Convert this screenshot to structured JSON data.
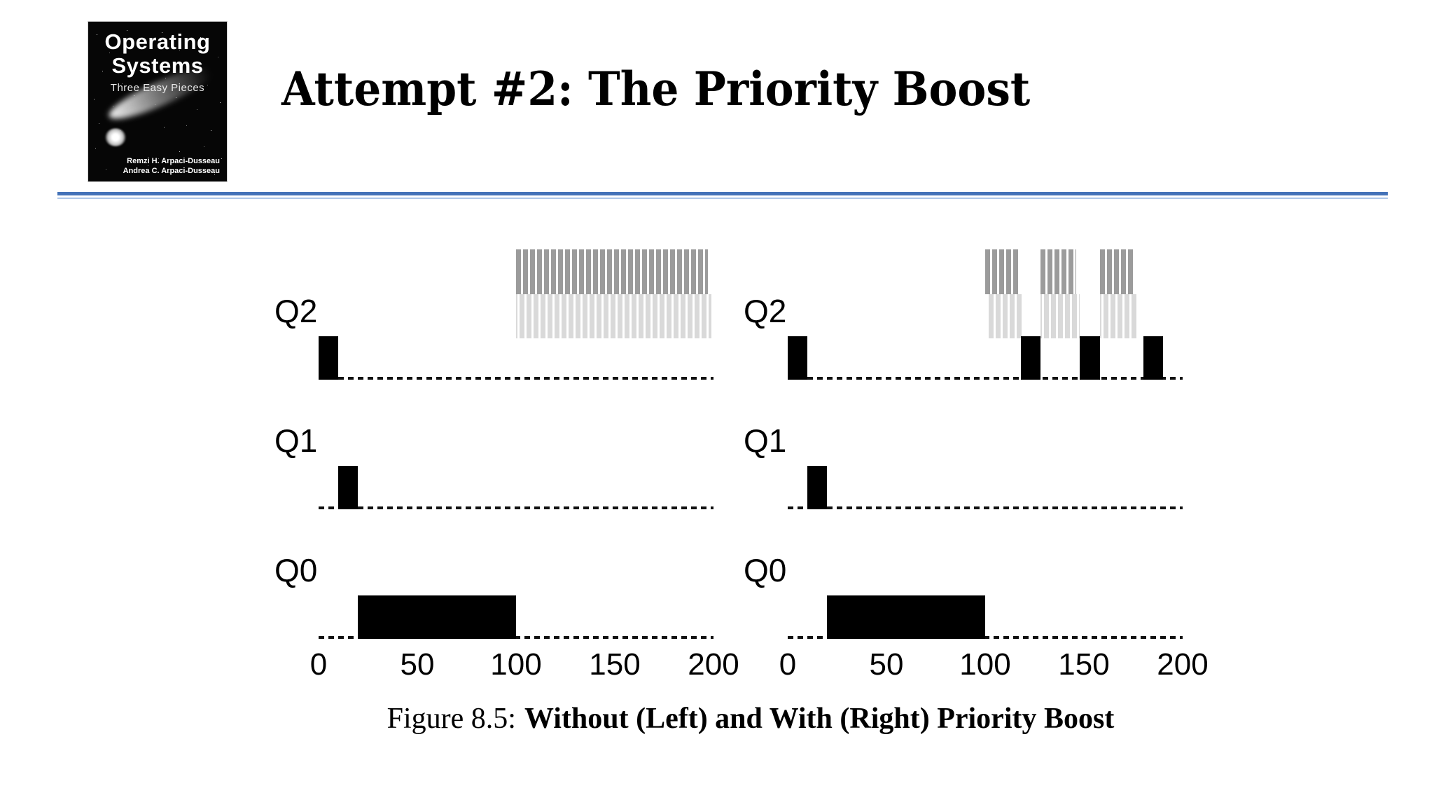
{
  "slide": {
    "title": "Attempt #2: The Priority Boost"
  },
  "book_cover": {
    "title_line1": "Operating",
    "title_line2": "Systems",
    "subtitle": "Three Easy Pieces",
    "author1": "Remzi H. Arpaci-Dusseau",
    "author2": "Andrea C. Arpaci-Dusseau"
  },
  "figure": {
    "caption_prefix": "Figure 8.5:",
    "caption_bold": "Without (Left) and With (Right) Priority Boost"
  },
  "colors": {
    "accent_rule": "#4472b8",
    "accent_rule_light": "#aec6e8",
    "bar_black": "#000000",
    "hatch_dark_gray": "#9b9b9b",
    "hatch_light_gray": "#d9d9d9",
    "dash": "#111111"
  },
  "chart_data": [
    {
      "type": "timeline",
      "position": "left",
      "variant": "Without (Left)",
      "x_range": [
        0,
        200
      ],
      "x_ticks": [
        0,
        50,
        100,
        150,
        200
      ],
      "rows": [
        {
          "label": "Q2",
          "solid_black_runs": [
            [
              0,
              10
            ]
          ],
          "gray_hatched_runs": [
            [
              100,
              197
            ]
          ]
        },
        {
          "label": "Q1",
          "solid_black_runs": [
            [
              10,
              20
            ]
          ],
          "gray_hatched_runs": []
        },
        {
          "label": "Q0",
          "solid_black_runs": [
            [
              20,
              100
            ]
          ],
          "gray_hatched_runs": []
        }
      ]
    },
    {
      "type": "timeline",
      "position": "right",
      "variant": "With (Right)",
      "x_range": [
        0,
        200
      ],
      "x_ticks": [
        0,
        50,
        100,
        150,
        200
      ],
      "rows": [
        {
          "label": "Q2",
          "solid_black_runs": [
            [
              0,
              10
            ],
            [
              118,
              128
            ],
            [
              148,
              158
            ],
            [
              180,
              190
            ]
          ],
          "gray_hatched_runs": [
            [
              100,
              117
            ],
            [
              128,
              146
            ],
            [
              158,
              176
            ]
          ]
        },
        {
          "label": "Q1",
          "solid_black_runs": [
            [
              10,
              20
            ]
          ],
          "gray_hatched_runs": []
        },
        {
          "label": "Q0",
          "solid_black_runs": [
            [
              20,
              100
            ]
          ],
          "gray_hatched_runs": []
        }
      ]
    }
  ]
}
